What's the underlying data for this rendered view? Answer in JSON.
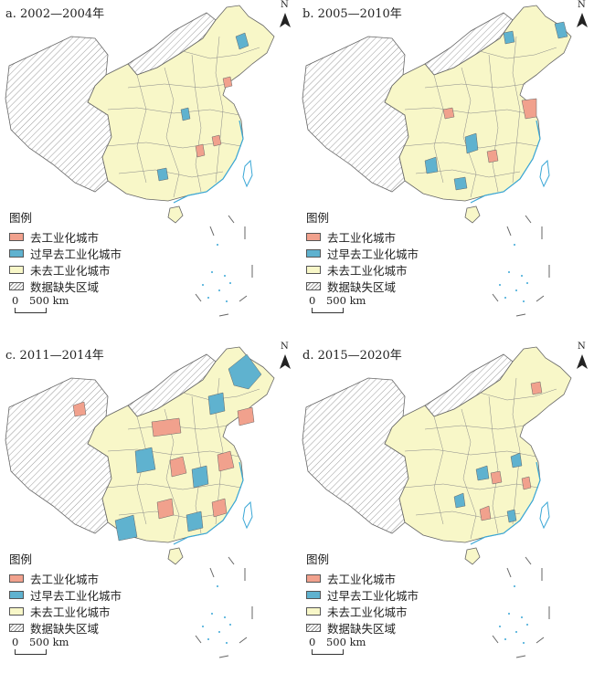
{
  "legend": {
    "title": "图例",
    "items": [
      {
        "label": "去工业化城市",
        "color": "#f1a18d"
      },
      {
        "label": "过早去工业化城市",
        "color": "#5fb2cf"
      },
      {
        "label": "未去工业化城市",
        "color": "#f8f7c8"
      },
      {
        "label": "数据缺失区域",
        "color": "hatch"
      }
    ]
  },
  "north_label": "N",
  "scale": {
    "zero": "0",
    "distance": "500 km"
  },
  "panels": [
    {
      "title": "a. 2002—2004年"
    },
    {
      "title": "b. 2005—2010年"
    },
    {
      "title": "c. 2011—2014年"
    },
    {
      "title": "d. 2015—2020年"
    }
  ],
  "colors": {
    "outline": "#555555",
    "coast": "#3aa7d6",
    "hatch": "#999999"
  }
}
